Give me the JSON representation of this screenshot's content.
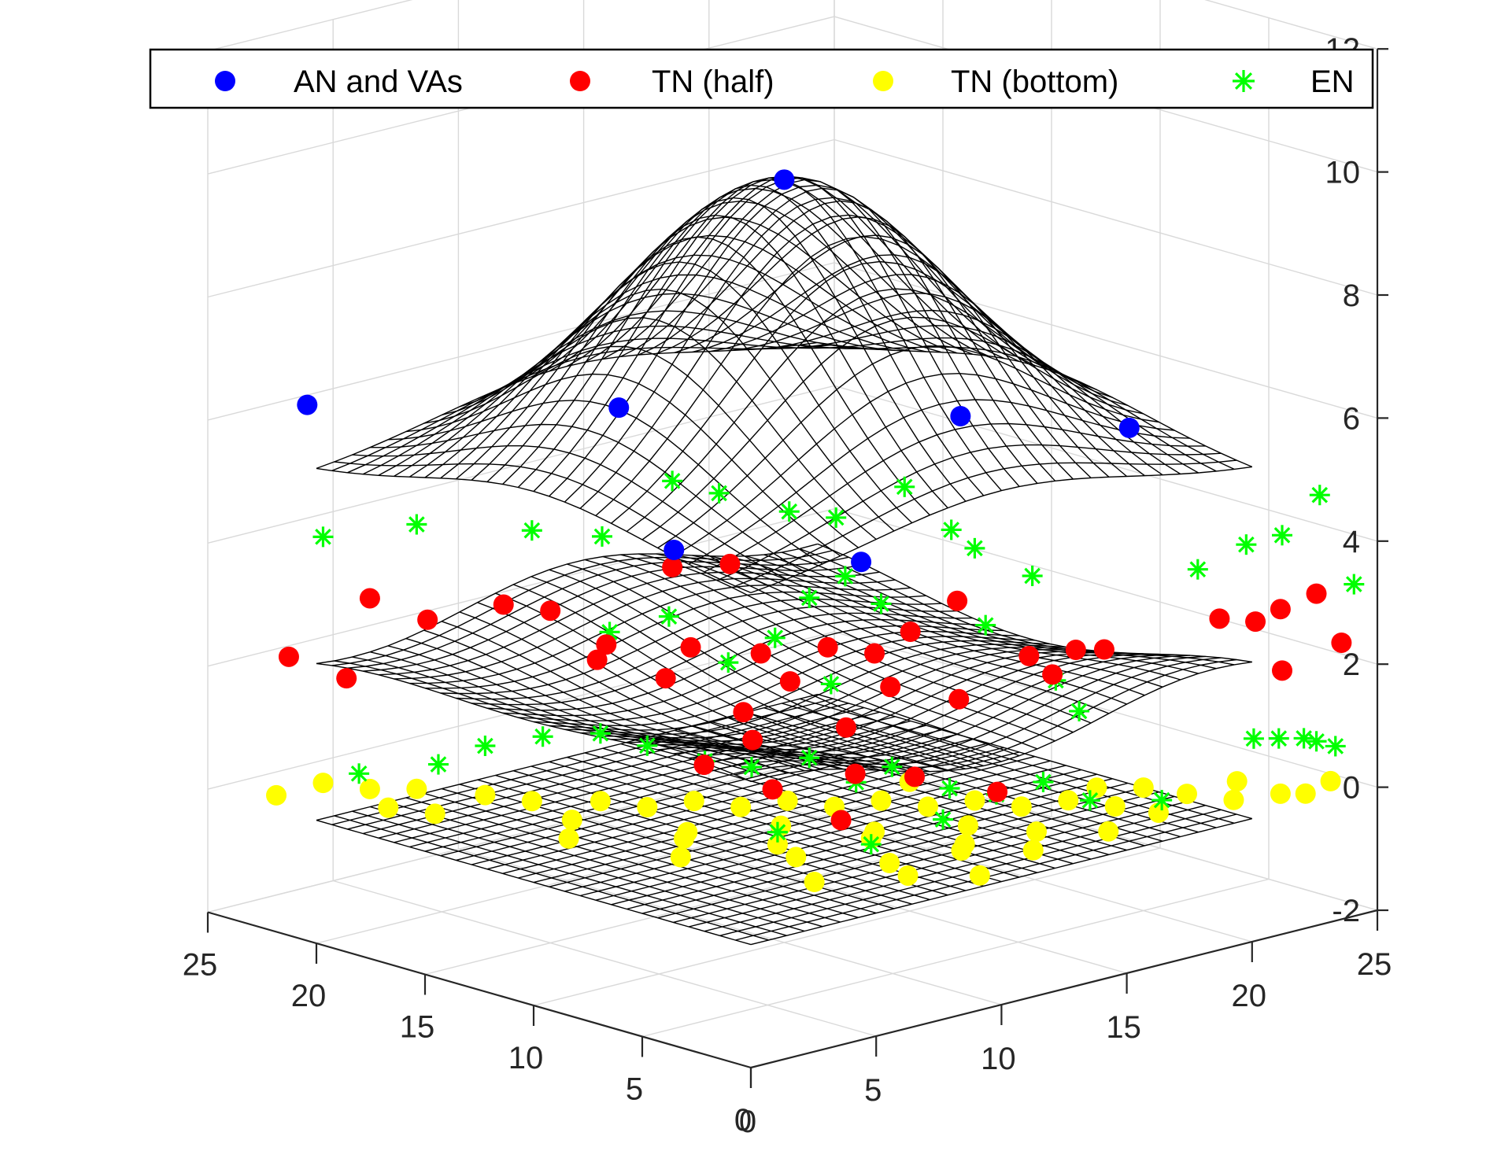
{
  "chart_data": {
    "type": "scatter3d_with_surfaces",
    "title": "",
    "xlabel": "",
    "ylabel": "",
    "zlabel": "",
    "xlim": [
      0,
      25
    ],
    "ylim": [
      0,
      25
    ],
    "zlim": [
      -2,
      12
    ],
    "x_ticks": [
      0,
      5,
      10,
      15,
      20,
      25
    ],
    "y_ticks": [
      0,
      5,
      10,
      15,
      20,
      25
    ],
    "z_ticks": [
      -2,
      0,
      2,
      4,
      6,
      8,
      10,
      12
    ],
    "x_tick_labels": [
      "0",
      "5",
      "10",
      "15",
      "20",
      "25"
    ],
    "y_tick_labels": [
      "0",
      "5",
      "10",
      "15",
      "20",
      "25"
    ],
    "z_tick_labels": [
      "-2",
      "0",
      "2",
      "4",
      "6",
      "8",
      "10",
      "12"
    ],
    "grid": true,
    "legend_position": "top",
    "surfaces": [
      {
        "name": "top mesh",
        "shape": "gaussian",
        "center": [
          10,
          10
        ],
        "base": 5.6,
        "peak": 10.4,
        "sigma": 5.2
      },
      {
        "name": "middle mesh",
        "shape": "wavy",
        "center": [
          10,
          10
        ],
        "base": 2.4,
        "amplitude": 0.6
      },
      {
        "name": "bottom mesh",
        "shape": "flat",
        "z": 0
      }
    ],
    "series": [
      {
        "name": "AN and VAs",
        "marker": "circle",
        "color": "#0000ff",
        "points": [
          [
            10,
            10,
            10.4
          ],
          [
            0.5,
            21,
            6.6
          ],
          [
            6,
            13,
            6.8
          ],
          [
            3,
            7,
            5.4
          ],
          [
            7,
            3,
            5.2
          ],
          [
            14,
            6.5,
            6.5
          ],
          [
            19,
            4.5,
            6.0
          ]
        ]
      },
      {
        "name": "TN (half)",
        "marker": "circle",
        "color": "#ff0000",
        "points": [
          [
            3,
            21,
            3.2
          ],
          [
            4,
            19.5,
            2.9
          ],
          [
            1.5,
            23,
            2.2
          ],
          [
            2.5,
            21.5,
            1.9
          ],
          [
            5,
            15,
            3.4
          ],
          [
            5.5,
            13,
            3.0
          ],
          [
            6,
            14,
            2.6
          ],
          [
            7,
            12,
            2.4
          ],
          [
            9,
            14,
            3.8
          ],
          [
            10,
            12.5,
            3.9
          ],
          [
            8,
            12,
            2.8
          ],
          [
            9.5,
            10.5,
            2.7
          ],
          [
            7.5,
            9,
            2.1
          ],
          [
            8.5,
            8,
            2.6
          ],
          [
            10,
            8,
            3.0
          ],
          [
            11,
            7,
            2.9
          ],
          [
            12,
            6.5,
            3.2
          ],
          [
            13,
            5.5,
            3.7
          ],
          [
            12.5,
            8,
            2.1
          ],
          [
            13.5,
            6,
            2.0
          ],
          [
            15,
            4.5,
            2.7
          ],
          [
            15.5,
            4,
            2.4
          ],
          [
            16,
            3.5,
            2.8
          ],
          [
            18,
            4.5,
            2.5
          ],
          [
            20,
            1.5,
            3.1
          ],
          [
            21,
            1,
            3.0
          ],
          [
            22,
            1,
            3.1
          ],
          [
            23,
            0.5,
            3.3
          ],
          [
            24,
            0.5,
            2.4
          ],
          [
            22.5,
            1.5,
            2.0
          ],
          [
            5.5,
            8.5,
            1.5
          ],
          [
            7,
            8,
            1.8
          ],
          [
            6.5,
            6.5,
            1.2
          ],
          [
            8.5,
            5,
            1.4
          ],
          [
            9,
            6,
            2.0
          ],
          [
            12,
            2.5,
            1.0
          ],
          [
            7.5,
            4.5,
            0.8
          ],
          [
            10,
            4,
            1.3
          ],
          [
            4,
            16,
            3.5
          ]
        ]
      },
      {
        "name": "TN (bottom)",
        "marker": "circle",
        "color": "#ffff00",
        "points": [
          [
            2,
            22,
            0.2
          ],
          [
            3,
            21,
            0.1
          ],
          [
            4,
            20,
            0.1
          ],
          [
            5,
            18,
            0.1
          ],
          [
            6,
            17,
            0.0
          ],
          [
            7,
            15,
            0.1
          ],
          [
            8,
            14,
            0.0
          ],
          [
            9,
            13,
            0.1
          ],
          [
            10,
            12,
            0.0
          ],
          [
            11,
            11,
            0.1
          ],
          [
            12,
            10,
            0.0
          ],
          [
            13,
            9,
            0.1
          ],
          [
            14,
            8,
            0.0
          ],
          [
            15,
            7,
            0.1
          ],
          [
            16,
            6,
            0.0
          ],
          [
            17,
            5,
            0.1
          ],
          [
            18,
            4,
            0.0
          ],
          [
            20,
            3,
            0.1
          ],
          [
            21,
            2,
            0.0
          ],
          [
            22,
            1,
            0.1
          ],
          [
            23,
            1,
            0.0
          ],
          [
            24,
            1,
            0.1
          ],
          [
            3,
            18,
            0.0
          ],
          [
            5,
            14,
            0.1
          ],
          [
            7,
            11,
            0.0
          ],
          [
            9,
            9,
            0.1
          ],
          [
            11,
            7,
            0.0
          ],
          [
            13,
            5,
            0.1
          ],
          [
            4,
            13,
            0.0
          ],
          [
            6,
            10,
            0.1
          ],
          [
            8,
            8,
            0.0
          ],
          [
            10,
            6,
            0.1
          ],
          [
            12,
            4,
            0.0
          ],
          [
            14,
            3,
            0.1
          ],
          [
            16,
            2,
            0.0
          ],
          [
            18,
            2,
            0.1
          ],
          [
            5,
            9,
            0.0
          ],
          [
            7,
            6,
            0.1
          ],
          [
            9,
            4,
            0.0
          ],
          [
            11,
            3,
            0.1
          ],
          [
            13,
            2,
            0.0
          ],
          [
            1,
            23,
            0.0
          ],
          [
            2,
            19,
            0.1
          ],
          [
            6,
            4,
            0.0
          ],
          [
            8,
            2,
            0.1
          ],
          [
            10,
            1,
            0.0
          ],
          [
            20,
            5,
            0.0
          ],
          [
            22,
            3,
            0.1
          ],
          [
            19,
            6,
            0.0
          ],
          [
            15,
            10,
            0.1
          ]
        ]
      },
      {
        "name": "EN",
        "marker": "asterisk",
        "color": "#00ff00",
        "points": [
          [
            2,
            22,
            4.2
          ],
          [
            4,
            20,
            4.4
          ],
          [
            6,
            17,
            4.4
          ],
          [
            7.5,
            15.5,
            4.3
          ],
          [
            9,
            14,
            5.2
          ],
          [
            10,
            13,
            5.0
          ],
          [
            11.5,
            11.5,
            4.7
          ],
          [
            12.5,
            10.5,
            4.6
          ],
          [
            13.5,
            8.5,
            5.2
          ],
          [
            14.5,
            7.5,
            4.5
          ],
          [
            15,
            7,
            4.2
          ],
          [
            16,
            5.5,
            3.8
          ],
          [
            20,
            2.5,
            3.8
          ],
          [
            21.5,
            2,
            4.1
          ],
          [
            22.5,
            1.5,
            4.2
          ],
          [
            24,
            1.5,
            4.7
          ],
          [
            24.5,
            0.5,
            3.3
          ],
          [
            11,
            10,
            3.5
          ],
          [
            12,
            9.5,
            3.8
          ],
          [
            10.5,
            11,
            2.8
          ],
          [
            6.5,
            14,
            3.0
          ],
          [
            8,
            13,
            3.2
          ],
          [
            9.5,
            12,
            2.4
          ],
          [
            11,
            9,
            2.2
          ],
          [
            13,
            9,
            3.3
          ],
          [
            15,
            6.5,
            3.0
          ],
          [
            16.5,
            5,
            2.1
          ],
          [
            17,
            4.5,
            1.6
          ],
          [
            20.5,
            0.5,
            1.2
          ],
          [
            21.5,
            0.5,
            1.1
          ],
          [
            22.5,
            0.5,
            1.0
          ],
          [
            23,
            0.5,
            0.9
          ],
          [
            23.5,
            0.2,
            0.8
          ],
          [
            3,
            21.5,
            0.3
          ],
          [
            4,
            19,
            0.6
          ],
          [
            5,
            18,
            0.9
          ],
          [
            6,
            16.5,
            1.1
          ],
          [
            7,
            15,
            1.2
          ],
          [
            8,
            14,
            1.0
          ],
          [
            9,
            12.5,
            0.8
          ],
          [
            10,
            11.5,
            0.7
          ],
          [
            11,
            10,
            0.9
          ],
          [
            12,
            9,
            0.5
          ],
          [
            13,
            8.5,
            0.7
          ],
          [
            14,
            7,
            0.4
          ],
          [
            15,
            6,
            0.3
          ],
          [
            16,
            5,
            0.5
          ],
          [
            17,
            4,
            0.2
          ],
          [
            19,
            3,
            0.1
          ],
          [
            8,
            8,
            0.2
          ],
          [
            10,
            6,
            0.0
          ],
          [
            12,
            5,
            0.3
          ]
        ]
      }
    ]
  }
}
